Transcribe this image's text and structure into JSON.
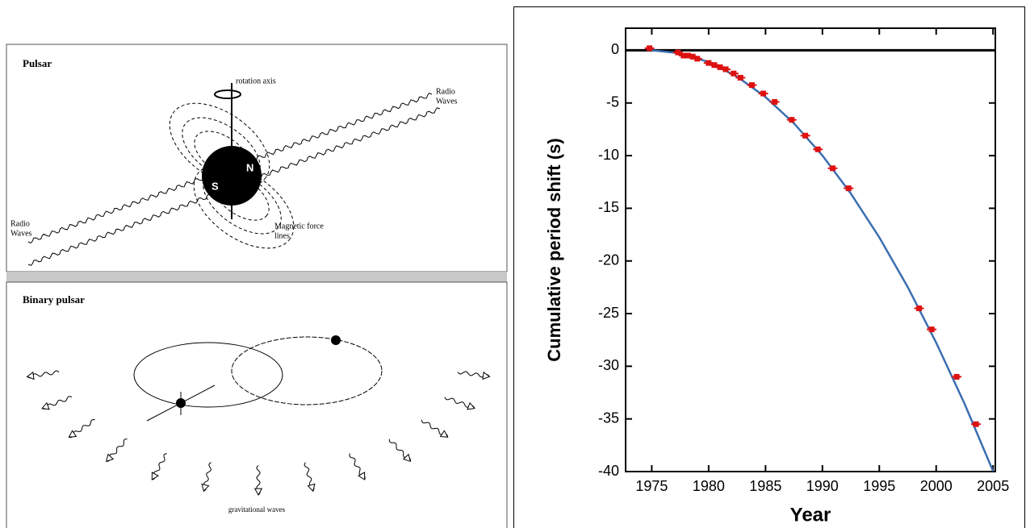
{
  "pulsar_panel": {
    "title": "Pulsar",
    "rotation_label": "rotation axis",
    "radio_right": [
      "Radio",
      "Waves"
    ],
    "radio_left": [
      "Radio",
      "Waves"
    ],
    "south": "S",
    "north": "N",
    "field_label": [
      "Magnetic force",
      "lines"
    ]
  },
  "binary_panel": {
    "title": "Binary pulsar",
    "waves_label": "gravitational waves"
  },
  "chart_data": {
    "type": "scatter",
    "x_label": "Year",
    "y_label": "Cumulative period shift (s)",
    "xlim": [
      1972.7,
      2005.2
    ],
    "ylim": [
      -40,
      2.1
    ],
    "xticks": [
      1975,
      1980,
      1985,
      1990,
      1995,
      2000,
      2005
    ],
    "yticks": [
      0,
      -5,
      -10,
      -15,
      -20,
      -25,
      -30,
      -35,
      -40
    ],
    "series": [
      {
        "type": "line",
        "color": "#3b6eb0",
        "x": [
          1975,
          1977.5,
          1980,
          1982.5,
          1985,
          1987.5,
          1990,
          1992.5,
          1995,
          1997.5,
          2000,
          2002.5,
          2005
        ],
        "values": [
          0,
          -0.28,
          -1.11,
          -2.5,
          -4.44,
          -6.94,
          -9.99,
          -13.6,
          -17.76,
          -22.48,
          -27.75,
          -33.58,
          -39.96
        ]
      },
      {
        "type": "scatter",
        "color": "#dd1111",
        "x": [
          1974.8,
          1977.3,
          1977.8,
          1978.2,
          1978.6,
          1979,
          1980,
          1980.5,
          1981,
          1981.5,
          1982.2,
          1982.8,
          1983.8,
          1984.8,
          1985.8,
          1987.3,
          1988.5,
          1989.6,
          1990.9,
          1992.3,
          1998.5,
          1999.6,
          2001.8,
          2003.5
        ],
        "values": [
          0.2,
          -0.2,
          -0.5,
          -0.5,
          -0.6,
          -0.8,
          -1.2,
          -1.4,
          -1.6,
          -1.8,
          -2.2,
          -2.6,
          -3.3,
          -4.1,
          -4.9,
          -6.6,
          -8.1,
          -9.4,
          -11.2,
          -13.1,
          -24.5,
          -26.5,
          -31.0,
          -35.5
        ]
      }
    ]
  }
}
